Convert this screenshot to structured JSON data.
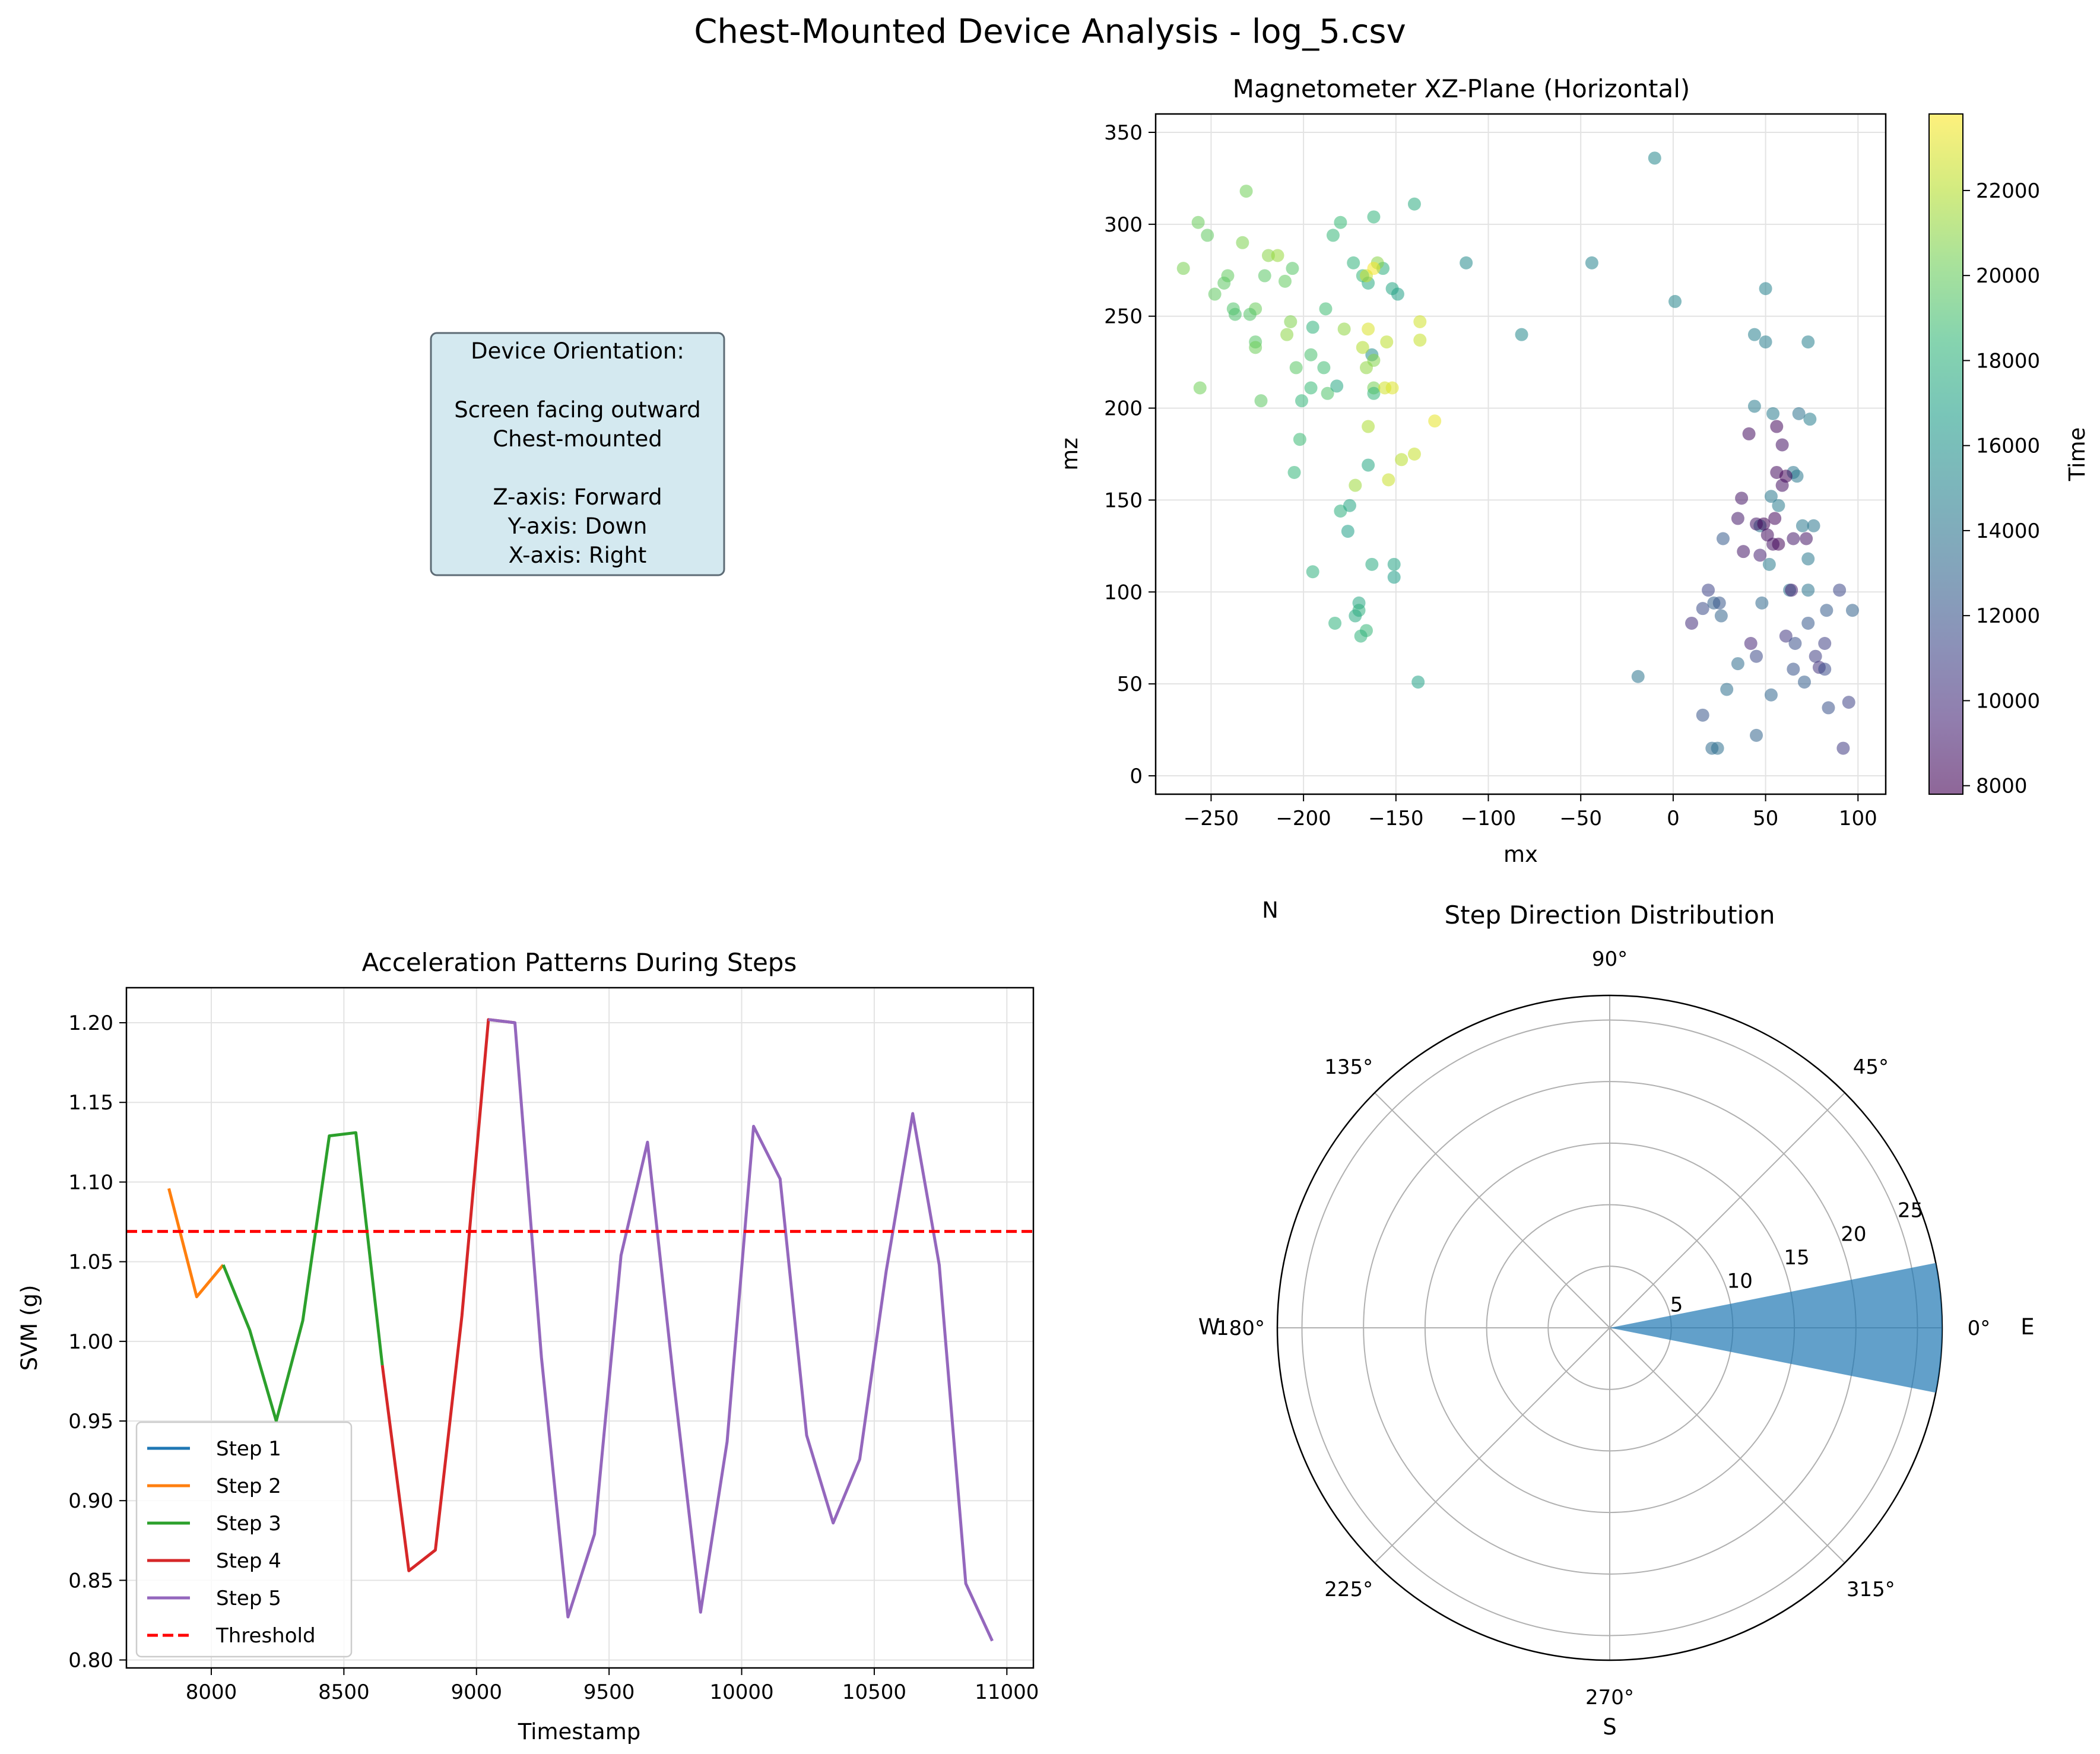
{
  "suptitle": "Chest-Mounted Device Analysis - log_5.csv",
  "info_panel": {
    "lines": [
      "Device Orientation:",
      "",
      "Screen facing outward",
      "Chest-mounted",
      "",
      "Z-axis: Forward",
      "Y-axis: Down",
      "X-axis: Right"
    ],
    "box_color": "#d4e9f0"
  },
  "chart_data": [
    {
      "id": "magnetometer",
      "type": "scatter",
      "title": "Magnetometer XZ-Plane (Horizontal)",
      "xlabel": "mx",
      "ylabel": "mz",
      "xlim": [
        -280,
        115
      ],
      "ylim": [
        -10,
        360
      ],
      "xticks": [
        -250,
        -200,
        -150,
        -100,
        -50,
        0,
        50,
        100
      ],
      "xtick_labels": [
        "−250",
        "−200",
        "−150",
        "−100",
        "−50",
        "0",
        "50",
        "100"
      ],
      "yticks": [
        0,
        50,
        100,
        150,
        200,
        250,
        300,
        350
      ],
      "grid": true,
      "colorbar": {
        "label": "Time",
        "colormap": "viridis",
        "range": [
          7800,
          23800
        ],
        "ticks": [
          8000,
          10000,
          12000,
          14000,
          16000,
          18000,
          20000,
          22000
        ]
      },
      "points": [
        [
          -10,
          336,
          15200
        ],
        [
          -44,
          279,
          15000
        ],
        [
          -112,
          279,
          15400
        ],
        [
          -82,
          240,
          15300
        ],
        [
          1,
          258,
          15100
        ],
        [
          50,
          265,
          14900
        ],
        [
          -19,
          54,
          14000
        ],
        [
          44,
          240,
          14700
        ],
        [
          50,
          236,
          14600
        ],
        [
          73,
          236,
          14800
        ],
        [
          44,
          201,
          14500
        ],
        [
          54,
          197,
          14400
        ],
        [
          74,
          194,
          14600
        ],
        [
          68,
          197,
          13800
        ],
        [
          67,
          163,
          14300
        ],
        [
          65,
          165,
          14100
        ],
        [
          57,
          147,
          14400
        ],
        [
          53,
          152,
          14200
        ],
        [
          47,
          136,
          14000
        ],
        [
          70,
          136,
          14300
        ],
        [
          76,
          136,
          14100
        ],
        [
          52,
          115,
          14500
        ],
        [
          73,
          118,
          14200
        ],
        [
          73,
          101,
          14000
        ],
        [
          63,
          101,
          13900
        ],
        [
          64,
          101,
          9300
        ],
        [
          41,
          186,
          8400
        ],
        [
          56,
          190,
          8200
        ],
        [
          59,
          180,
          8600
        ],
        [
          56,
          165,
          8300
        ],
        [
          61,
          163,
          8100
        ],
        [
          59,
          158,
          8500
        ],
        [
          37,
          151,
          8700
        ],
        [
          35,
          140,
          8900
        ],
        [
          55,
          140,
          8200
        ],
        [
          45,
          137,
          8800
        ],
        [
          49,
          137,
          8000
        ],
        [
          51,
          131,
          8400
        ],
        [
          54,
          126,
          8600
        ],
        [
          57,
          126,
          8100
        ],
        [
          65,
          129,
          9000
        ],
        [
          72,
          129,
          8700
        ],
        [
          38,
          122,
          8800
        ],
        [
          47,
          120,
          9400
        ],
        [
          27,
          129,
          12400
        ],
        [
          19,
          101,
          11200
        ],
        [
          16,
          91,
          11500
        ],
        [
          10,
          83,
          10000
        ],
        [
          22,
          94,
          12700
        ],
        [
          25,
          94,
          12200
        ],
        [
          26,
          87,
          12900
        ],
        [
          48,
          94,
          13200
        ],
        [
          83,
          90,
          12500
        ],
        [
          97,
          90,
          12800
        ],
        [
          90,
          101,
          11300
        ],
        [
          42,
          72,
          9600
        ],
        [
          45,
          65,
          11400
        ],
        [
          61,
          76,
          10500
        ],
        [
          66,
          72,
          11800
        ],
        [
          73,
          83,
          12300
        ],
        [
          77,
          65,
          10800
        ],
        [
          82,
          72,
          10900
        ],
        [
          79,
          59,
          10200
        ],
        [
          82,
          58,
          11600
        ],
        [
          65,
          58,
          12000
        ],
        [
          53,
          44,
          13000
        ],
        [
          71,
          51,
          12600
        ],
        [
          35,
          61,
          13500
        ],
        [
          29,
          47,
          13700
        ],
        [
          16,
          33,
          12100
        ],
        [
          21,
          15,
          13400
        ],
        [
          24,
          15,
          13600
        ],
        [
          45,
          22,
          12900
        ],
        [
          84,
          37,
          11900
        ],
        [
          95,
          40,
          11100
        ],
        [
          92,
          15,
          10700
        ],
        [
          -231,
          318,
          20300
        ],
        [
          -257,
          301,
          20100
        ],
        [
          -252,
          294,
          19800
        ],
        [
          -233,
          290,
          20600
        ],
        [
          -241,
          272,
          19900
        ],
        [
          -243,
          268,
          19700
        ],
        [
          -265,
          276,
          20500
        ],
        [
          -219,
          283,
          20900
        ],
        [
          -214,
          283,
          21300
        ],
        [
          -221,
          272,
          19600
        ],
        [
          -210,
          269,
          19900
        ],
        [
          -206,
          276,
          19500
        ],
        [
          -248,
          262,
          19800
        ],
        [
          -226,
          254,
          20100
        ],
        [
          -238,
          254,
          19300
        ],
        [
          -237,
          251,
          19200
        ],
        [
          -229,
          251,
          19400
        ],
        [
          -209,
          240,
          21000
        ],
        [
          -207,
          247,
          20700
        ],
        [
          -226,
          236,
          19500
        ],
        [
          -226,
          233,
          20200
        ],
        [
          -256,
          211,
          20300
        ],
        [
          -223,
          204,
          19700
        ],
        [
          -195,
          244,
          18200
        ],
        [
          -188,
          254,
          18800
        ],
        [
          -204,
          222,
          19600
        ],
        [
          -196,
          229,
          19100
        ],
        [
          -189,
          222,
          18800
        ],
        [
          -196,
          211,
          18600
        ],
        [
          -201,
          204,
          18400
        ],
        [
          -187,
          208,
          19300
        ],
        [
          -182,
          212,
          17400
        ],
        [
          -178,
          243,
          21100
        ],
        [
          -184,
          294,
          18500
        ],
        [
          -180,
          301,
          18600
        ],
        [
          -173,
          279,
          18200
        ],
        [
          -162,
          304,
          18300
        ],
        [
          -140,
          311,
          17700
        ],
        [
          -168,
          272,
          18400
        ],
        [
          -165,
          268,
          17600
        ],
        [
          -157,
          276,
          17900
        ],
        [
          -160,
          279,
          20900
        ],
        [
          -166,
          272,
          22400
        ],
        [
          -162,
          276,
          23600
        ],
        [
          -152,
          265,
          17200
        ],
        [
          -149,
          262,
          16900
        ],
        [
          -137,
          247,
          22700
        ],
        [
          -137,
          237,
          22400
        ],
        [
          -165,
          243,
          22900
        ],
        [
          -155,
          236,
          22200
        ],
        [
          -163,
          229,
          15700
        ],
        [
          -168,
          233,
          21900
        ],
        [
          -166,
          222,
          21100
        ],
        [
          -162,
          226,
          20800
        ],
        [
          -162,
          211,
          20400
        ],
        [
          -162,
          208,
          18400
        ],
        [
          -156,
          211,
          22700
        ],
        [
          -152,
          211,
          23000
        ],
        [
          -129,
          193,
          23200
        ],
        [
          -165,
          190,
          21800
        ],
        [
          -147,
          172,
          22100
        ],
        [
          -140,
          175,
          22400
        ],
        [
          -154,
          161,
          22500
        ],
        [
          -165,
          169,
          17300
        ],
        [
          -172,
          158,
          21400
        ],
        [
          -202,
          183,
          18700
        ],
        [
          -205,
          165,
          18400
        ],
        [
          -180,
          144,
          17900
        ],
        [
          -175,
          147,
          17200
        ],
        [
          -176,
          133,
          16800
        ],
        [
          -195,
          111,
          18000
        ],
        [
          -163,
          115,
          17600
        ],
        [
          -151,
          115,
          17100
        ],
        [
          -151,
          108,
          16700
        ],
        [
          -170,
          94,
          17400
        ],
        [
          -170,
          90,
          17900
        ],
        [
          -172,
          87,
          17500
        ],
        [
          -183,
          83,
          18100
        ],
        [
          -166,
          79,
          18500
        ],
        [
          -169,
          76,
          18200
        ],
        [
          -138,
          51,
          17000
        ]
      ]
    },
    {
      "id": "acceleration",
      "type": "line",
      "title": "Acceleration Patterns During Steps",
      "xlabel": "Timestamp",
      "ylabel": "SVM (g)",
      "xlim": [
        7680,
        11100
      ],
      "ylim": [
        0.795,
        1.222
      ],
      "xticks": [
        8000,
        8500,
        9000,
        9500,
        10000,
        10500,
        11000
      ],
      "yticks": [
        0.8,
        0.85,
        0.9,
        0.95,
        1.0,
        1.05,
        1.1,
        1.15,
        1.2
      ],
      "ytick_labels": [
        "0.80",
        "0.85",
        "0.90",
        "0.95",
        "1.00",
        "1.05",
        "1.10",
        "1.15",
        "1.20"
      ],
      "grid": true,
      "legend_position": "lower-left",
      "series": [
        {
          "name": "Step 1",
          "color": "#1f77b4",
          "x": [],
          "y": []
        },
        {
          "name": "Step 2",
          "color": "#ff7f0e",
          "x": [
            7840,
            7945,
            8045
          ],
          "y": [
            1.096,
            1.028,
            1.048
          ]
        },
        {
          "name": "Step 3",
          "color": "#2ca02c",
          "x": [
            8045,
            8145,
            8245,
            8345,
            8445,
            8545,
            8645
          ],
          "y": [
            1.048,
            1.007,
            0.95,
            1.013,
            1.129,
            1.131,
            0.985
          ]
        },
        {
          "name": "Step 4",
          "color": "#d62728",
          "x": [
            8645,
            8745,
            8845,
            8945,
            9045,
            9145
          ],
          "y": [
            0.985,
            0.856,
            0.869,
            1.016,
            1.202,
            1.2
          ]
        },
        {
          "name": "Step 5",
          "color": "#9467bd",
          "x": [
            9045,
            9145,
            9245,
            9345,
            9445,
            9545,
            9645,
            9745,
            9845,
            9945,
            10045,
            10145,
            10245,
            10345,
            10445,
            10545,
            10645,
            10745,
            10845,
            10945
          ],
          "y": [
            1.202,
            1.2,
            0.99,
            0.827,
            0.879,
            1.054,
            1.125,
            0.973,
            0.83,
            0.937,
            1.135,
            1.102,
            0.941,
            0.886,
            0.926,
            1.044,
            1.143,
            1.048,
            0.848,
            0.812
          ]
        }
      ],
      "threshold": {
        "name": "Threshold",
        "value": 1.069,
        "color": "#ff0000"
      }
    },
    {
      "id": "direction",
      "type": "polar-bar",
      "title": "Step Direction Distribution",
      "angle_ticks": [
        0,
        45,
        90,
        135,
        180,
        225,
        270,
        315
      ],
      "angle_tick_labels": [
        "0°",
        "45°",
        "90°",
        "135°",
        "180°",
        "225°",
        "270°",
        "315°"
      ],
      "radial_ticks": [
        5,
        10,
        15,
        20,
        25
      ],
      "rmax": 27,
      "bars": [
        {
          "start_deg": -11.25,
          "end_deg": 11.25,
          "value": 27
        }
      ],
      "bar_color": "#1f77b4",
      "compass": {
        "N": "N",
        "E": "E",
        "S": "S",
        "W": "W"
      }
    }
  ]
}
